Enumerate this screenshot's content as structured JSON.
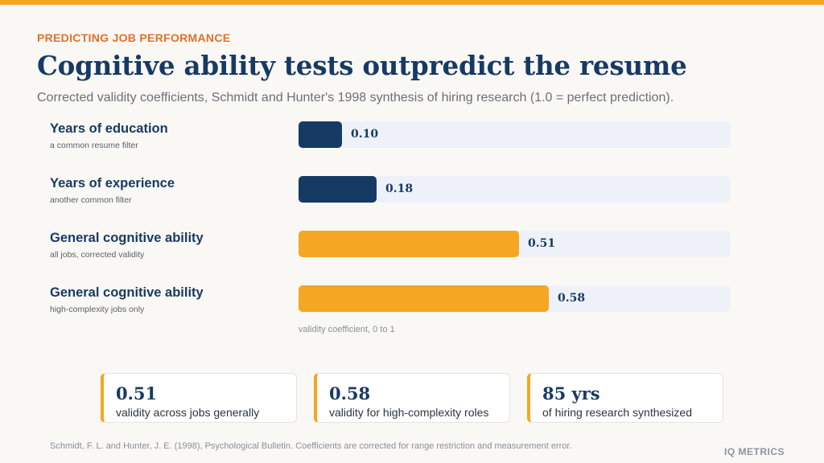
{
  "header": {
    "kicker": "PREDICTING JOB PERFORMANCE",
    "title": "Cognitive ability tests outpredict the resume",
    "subtitle": "Corrected validity coefficients, Schmidt and Hunter's 1998 synthesis of hiring research (1.0 = perfect prediction)."
  },
  "chart_data": {
    "type": "bar",
    "orientation": "horizontal",
    "categories": [
      "Years of education",
      "Years of experience",
      "General cognitive ability",
      "General cognitive ability"
    ],
    "category_notes": [
      "a common resume filter",
      "another common filter",
      "all jobs, corrected validity",
      "high-complexity jobs only"
    ],
    "values": [
      0.1,
      0.18,
      0.51,
      0.58
    ],
    "value_labels": [
      "0.10",
      "0.18",
      "0.51",
      "0.58"
    ],
    "bar_colors": [
      "#173a64",
      "#173a64",
      "#f5a623",
      "#f5a623"
    ],
    "xlim": [
      0,
      1
    ],
    "xlabel": "validity coefficient, 0 to 1",
    "grid": false
  },
  "cards": [
    {
      "value": "0.51",
      "label": "validity across jobs generally"
    },
    {
      "value": "0.58",
      "label": "validity for high-complexity roles"
    },
    {
      "value": "85 yrs",
      "label": "of hiring research synthesized"
    }
  ],
  "footer": {
    "citation": "Schmidt, F. L. and Hunter, J. E. (1998), Psychological Bulletin. Coefficients are corrected for range restriction and measurement error.",
    "brand": "IQ METRICS"
  },
  "colors": {
    "accent": "#f5a623",
    "navy": "#173a64",
    "kicker": "#e0702a",
    "track": "#eef2f8",
    "background": "#faf8f5"
  }
}
